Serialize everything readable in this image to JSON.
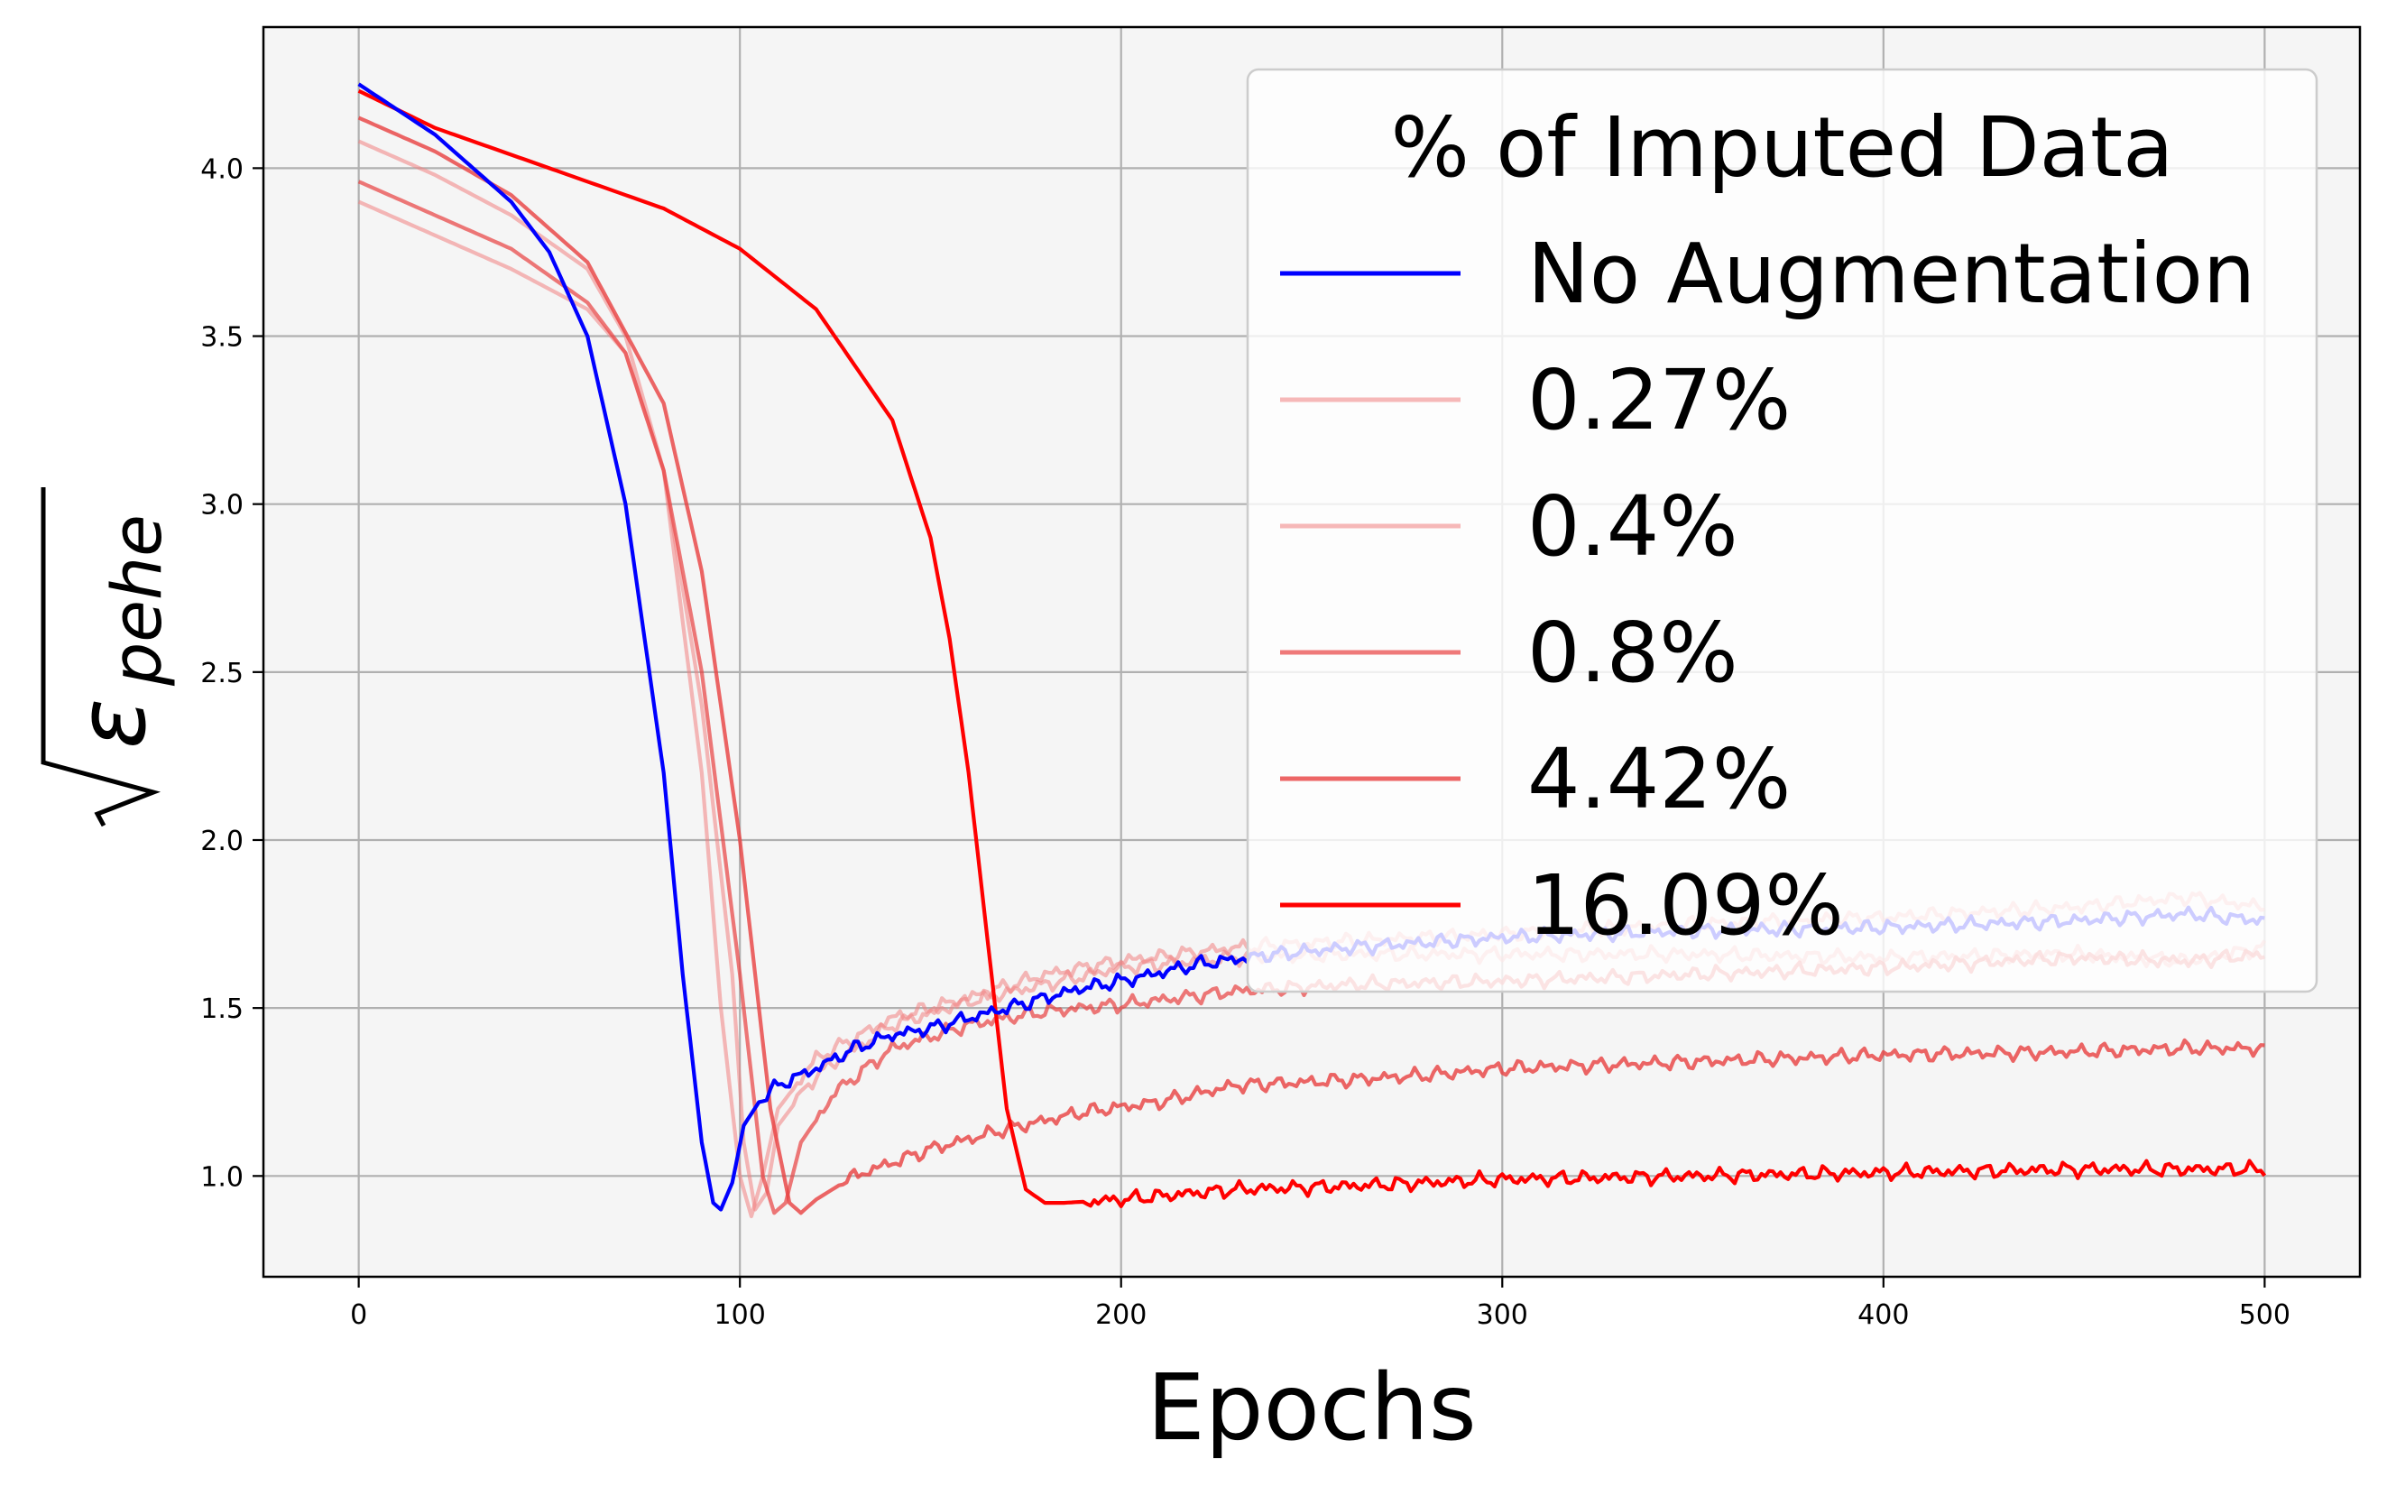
{
  "chart_data": {
    "type": "line",
    "xlabel": "Epochs",
    "ylabel": "√ε_pehe",
    "ylabel_main": "ε",
    "ylabel_sub": "pehe",
    "xlim": [
      -25,
      525
    ],
    "ylim": [
      0.7,
      4.42
    ],
    "xticks": [
      0,
      100,
      200,
      300,
      400,
      500
    ],
    "yticks": [
      1.0,
      1.5,
      2.0,
      2.5,
      3.0,
      3.5,
      4.0
    ],
    "xtick_labels": [
      "0",
      "100",
      "200",
      "300",
      "400",
      "500"
    ],
    "ytick_labels": [
      "1.0",
      "1.5",
      "2.0",
      "2.5",
      "3.0",
      "3.5",
      "4.0"
    ],
    "grid": true,
    "legend": {
      "title": "% of Imputed Data",
      "placement": "top-right"
    },
    "series": [
      {
        "name": "0.27%",
        "color": "#f08080",
        "opacity": 0.55,
        "x": [
          0,
          20,
          40,
          60,
          70,
          80,
          90,
          95,
          100,
          103,
          106,
          110,
          120,
          140,
          160,
          180,
          200,
          230,
          260,
          300,
          350,
          400,
          450,
          480,
          500
        ],
        "y": [
          4.08,
          3.98,
          3.86,
          3.7,
          3.5,
          3.1,
          2.2,
          1.5,
          1.0,
          0.88,
          1.0,
          1.2,
          1.35,
          1.47,
          1.53,
          1.6,
          1.64,
          1.68,
          1.7,
          1.72,
          1.75,
          1.77,
          1.8,
          1.83,
          1.8
        ]
      },
      {
        "name": "0.4%",
        "color": "#f08080",
        "opacity": 0.55,
        "x": [
          0,
          20,
          40,
          60,
          70,
          80,
          90,
          98,
          101,
          104,
          107,
          110,
          120,
          140,
          160,
          180,
          200,
          230,
          260,
          300,
          350,
          400,
          450,
          480,
          500
        ],
        "y": [
          3.9,
          3.8,
          3.7,
          3.58,
          3.45,
          3.1,
          2.4,
          1.6,
          1.1,
          0.9,
          0.95,
          1.15,
          1.3,
          1.45,
          1.52,
          1.57,
          1.62,
          1.65,
          1.66,
          1.66,
          1.66,
          1.65,
          1.66,
          1.64,
          1.68
        ]
      },
      {
        "name": "0.8%",
        "color": "#e84040",
        "opacity": 0.7,
        "x": [
          0,
          20,
          40,
          60,
          70,
          80,
          90,
          100,
          106,
          109,
          112,
          116,
          125,
          140,
          160,
          180,
          200,
          230,
          260,
          300,
          350,
          400,
          450,
          480,
          500
        ],
        "y": [
          3.96,
          3.86,
          3.76,
          3.6,
          3.45,
          3.1,
          2.5,
          1.6,
          1.0,
          0.89,
          0.92,
          1.1,
          1.25,
          1.38,
          1.45,
          1.49,
          1.51,
          1.55,
          1.57,
          1.58,
          1.6,
          1.62,
          1.65,
          1.64,
          1.66
        ]
      },
      {
        "name": "4.42%",
        "color": "#e84040",
        "opacity": 0.8,
        "x": [
          0,
          20,
          40,
          60,
          80,
          90,
          100,
          108,
          113,
          116,
          120,
          130,
          150,
          170,
          190,
          210,
          230,
          250,
          280,
          300,
          350,
          400,
          450,
          480,
          500
        ],
        "y": [
          4.15,
          4.05,
          3.92,
          3.72,
          3.3,
          2.8,
          2.0,
          1.2,
          0.92,
          0.89,
          0.93,
          1.0,
          1.08,
          1.14,
          1.19,
          1.22,
          1.27,
          1.28,
          1.3,
          1.32,
          1.34,
          1.36,
          1.37,
          1.38,
          1.38
        ]
      },
      {
        "name": "16.09%",
        "color": "#ff0000",
        "opacity": 1.0,
        "x": [
          0,
          20,
          50,
          80,
          100,
          120,
          140,
          150,
          155,
          160,
          165,
          170,
          175,
          180,
          185,
          200,
          230,
          260,
          300,
          350,
          400,
          450,
          480,
          500
        ],
        "y": [
          4.23,
          4.12,
          4.0,
          3.88,
          3.76,
          3.58,
          3.25,
          2.9,
          2.6,
          2.2,
          1.7,
          1.2,
          0.96,
          0.92,
          0.92,
          0.93,
          0.96,
          0.97,
          0.99,
          1.0,
          1.01,
          1.02,
          1.02,
          1.02
        ]
      },
      {
        "name": "No Augmentation",
        "color": "#0000ff",
        "opacity": 1.0,
        "x": [
          0,
          20,
          40,
          50,
          60,
          70,
          80,
          85,
          90,
          93,
          95,
          98,
          101,
          105,
          110,
          120,
          130,
          140,
          150,
          160,
          170,
          180,
          190,
          200,
          220,
          240,
          260,
          300,
          350,
          400,
          450,
          480,
          500
        ],
        "y": [
          4.25,
          4.1,
          3.9,
          3.75,
          3.5,
          3.0,
          2.2,
          1.6,
          1.1,
          0.92,
          0.9,
          0.98,
          1.15,
          1.22,
          1.27,
          1.32,
          1.38,
          1.42,
          1.44,
          1.47,
          1.5,
          1.53,
          1.56,
          1.58,
          1.63,
          1.66,
          1.68,
          1.71,
          1.73,
          1.74,
          1.76,
          1.78,
          1.76
        ]
      }
    ],
    "legend_order": [
      "No Augmentation",
      "0.27%",
      "0.4%",
      "0.8%",
      "4.42%",
      "16.09%"
    ]
  }
}
